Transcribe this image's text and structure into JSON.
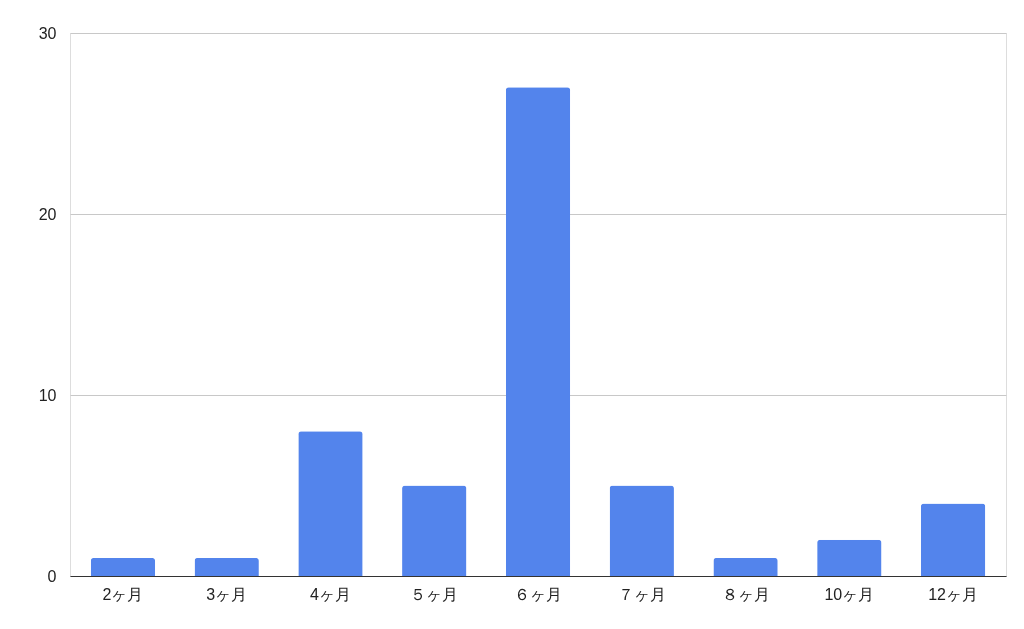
{
  "chart_data": {
    "type": "bar",
    "categories": [
      "2ヶ月",
      "3ヶ月",
      "4ヶ月",
      "５ヶ月",
      "６ヶ月",
      "７ヶ月",
      "８ヶ月",
      "10ヶ月",
      "12ヶ月"
    ],
    "values": [
      1,
      1,
      8,
      5,
      27,
      5,
      1,
      2,
      4
    ],
    "color": "#5384ec",
    "ylim": [
      0,
      30
    ],
    "yticks": [
      0,
      10,
      20,
      30
    ],
    "grid": "y"
  }
}
